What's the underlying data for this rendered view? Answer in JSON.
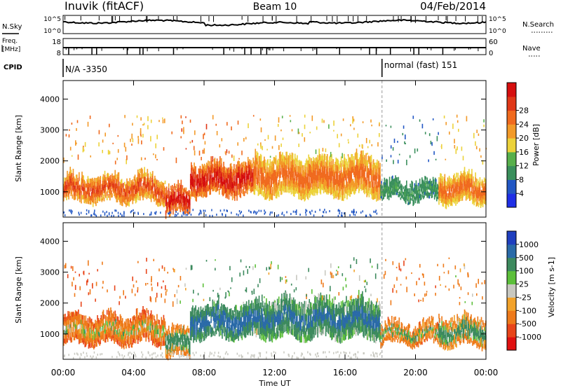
{
  "header": {
    "title": "Inuvik (fitACF)",
    "beam": "Beam 10",
    "date": "04/Feb/2014"
  },
  "noise_panel": {
    "left_label": "N.Sky",
    "right_label": "N.Search",
    "left_ticks": [
      "10^5",
      "10^0"
    ],
    "right_ticks": [
      "10^5",
      "10^0"
    ]
  },
  "freq_panel": {
    "left_label_1": "Freq.",
    "left_label_2": "[MHz]",
    "left_ticks": [
      "18",
      "8"
    ],
    "right_label": "Nave",
    "right_ticks": [
      "60",
      "0"
    ]
  },
  "cpid_panel": {
    "label": "CPID",
    "segment_1": "N/A -3350",
    "segment_2": "normal (fast) 151",
    "switch_time": 18.1
  },
  "chart_data": [
    {
      "type": "heatmap",
      "name": "power",
      "ylabel": "Slant Range [km]",
      "xlabel": "Time UT",
      "x_range": [
        0,
        24
      ],
      "ylim": [
        180,
        4600
      ],
      "y_ticks": [
        "1000",
        "2000",
        "3000",
        "4000"
      ],
      "x_ticks": [
        "00:00",
        "04:00",
        "08:00",
        "12:00",
        "16:00",
        "20:00",
        "00:00"
      ],
      "colorbar": {
        "label": "Power [dB]",
        "ticks": [
          "4",
          "8",
          "12",
          "16",
          "20",
          "24",
          "28"
        ],
        "colors": [
          "#1f2fe6",
          "#2257c4",
          "#3a8f5c",
          "#58b04c",
          "#ecd23a",
          "#f39a28",
          "#f06a1e",
          "#e03818",
          "#d60f0f"
        ]
      },
      "bands": [
        {
          "t0": 0.0,
          "t1": 5.8,
          "r_low": 700,
          "r_high": 1500,
          "peak_db": 24
        },
        {
          "t0": 5.8,
          "t1": 7.2,
          "r_low": 300,
          "r_high": 1100,
          "peak_db": 28
        },
        {
          "t0": 7.2,
          "t1": 10.8,
          "r_low": 900,
          "r_high": 1900,
          "peak_db": 28
        },
        {
          "t0": 10.8,
          "t1": 18.0,
          "r_low": 900,
          "r_high": 2100,
          "peak_db": 22
        },
        {
          "t0": 18.0,
          "t1": 21.3,
          "r_low": 750,
          "r_high": 1300,
          "peak_db": 10
        },
        {
          "t0": 21.3,
          "t1": 24.0,
          "r_low": 650,
          "r_high": 1500,
          "peak_db": 22
        }
      ]
    },
    {
      "type": "heatmap",
      "name": "velocity",
      "ylabel": "Slant Range [km]",
      "xlabel": "Time UT",
      "x_range": [
        0,
        24
      ],
      "ylim": [
        180,
        4600
      ],
      "y_ticks": [
        "1000",
        "2000",
        "3000",
        "4000"
      ],
      "x_ticks": [
        "00:00",
        "04:00",
        "08:00",
        "12:00",
        "16:00",
        "20:00",
        "00:00"
      ],
      "colorbar": {
        "label": "Velocity [m s-1]",
        "ticks": [
          "1000",
          "500",
          "100",
          "25",
          "-25",
          "-100",
          "-500",
          "-1000"
        ],
        "colors": [
          "#1f3fbf",
          "#2a6aa8",
          "#3d8a5e",
          "#5cbf3a",
          "#c8c8c0",
          "#f2a22a",
          "#ee7a1a",
          "#e8451a",
          "#e01010"
        ]
      },
      "bands": [
        {
          "t0": 0.0,
          "t1": 5.8,
          "r_low": 700,
          "r_high": 1600,
          "velocity": -300
        },
        {
          "t0": 5.8,
          "t1": 7.2,
          "r_low": 300,
          "r_high": 1200,
          "velocity": 0
        },
        {
          "t0": 7.2,
          "t1": 10.8,
          "r_low": 900,
          "r_high": 1900,
          "velocity": 400
        },
        {
          "t0": 10.8,
          "t1": 18.0,
          "r_low": 900,
          "r_high": 2100,
          "velocity": 300
        },
        {
          "t0": 18.0,
          "t1": 21.3,
          "r_low": 700,
          "r_high": 1300,
          "velocity": -200
        },
        {
          "t0": 21.3,
          "t1": 24.0,
          "r_low": 650,
          "r_high": 1500,
          "velocity": 0
        }
      ]
    }
  ]
}
